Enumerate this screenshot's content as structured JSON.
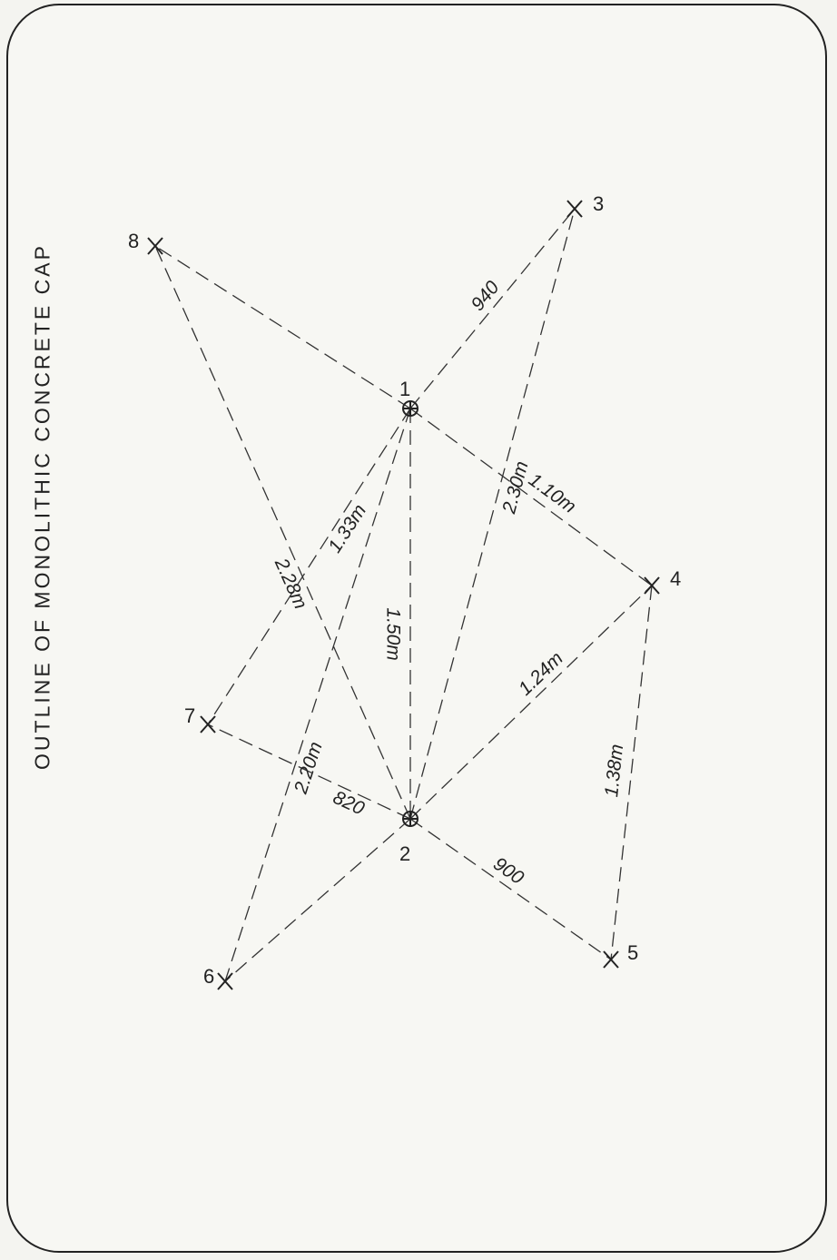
{
  "title": "OUTLINE OF MONOLITHIC CONCRETE CAP",
  "points": [
    {
      "id": "1",
      "label": "1",
      "kind": "circle-cross"
    },
    {
      "id": "2",
      "label": "2",
      "kind": "circle-cross"
    },
    {
      "id": "3",
      "label": "3",
      "kind": "cross"
    },
    {
      "id": "4",
      "label": "4",
      "kind": "cross"
    },
    {
      "id": "5",
      "label": "5",
      "kind": "cross"
    },
    {
      "id": "6",
      "label": "6",
      "kind": "cross"
    },
    {
      "id": "7",
      "label": "7",
      "kind": "cross"
    },
    {
      "id": "8",
      "label": "8",
      "kind": "cross"
    }
  ],
  "edges": [
    {
      "from": "1",
      "to": "3",
      "label": "940"
    },
    {
      "from": "1",
      "to": "4",
      "label": "1.10m"
    },
    {
      "from": "1",
      "to": "2",
      "label": "1.50m"
    },
    {
      "from": "1",
      "to": "7",
      "label": "1.33m"
    },
    {
      "from": "1",
      "to": "6",
      "label": "2.20m"
    },
    {
      "from": "1",
      "to": "8",
      "label": ""
    },
    {
      "from": "2",
      "to": "8",
      "label": "2.28m"
    },
    {
      "from": "2",
      "to": "3",
      "label": "2.30m"
    },
    {
      "from": "2",
      "to": "4",
      "label": "1.24m"
    },
    {
      "from": "2",
      "to": "7",
      "label": "820"
    },
    {
      "from": "2",
      "to": "5",
      "label": "900"
    },
    {
      "from": "2",
      "to": "6",
      "label": ""
    },
    {
      "from": "4",
      "to": "5",
      "label": "1.38m"
    }
  ]
}
